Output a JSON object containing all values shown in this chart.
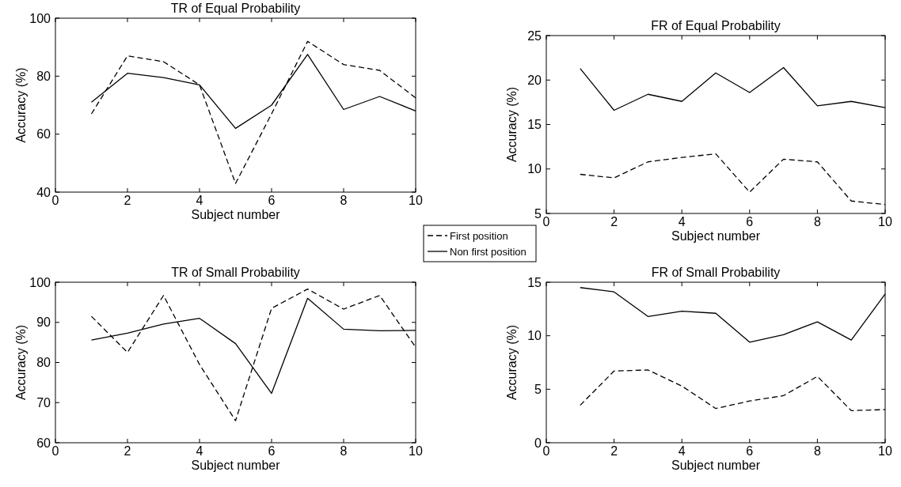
{
  "chart_data": [
    {
      "type": "line",
      "title": "TR of Equal Probability",
      "xlabel": "Subject number",
      "ylabel": "Accuracy (%)",
      "x": [
        1,
        2,
        3,
        4,
        5,
        6,
        7,
        8,
        9,
        10
      ],
      "xlim": [
        0,
        10
      ],
      "xticks": [
        0,
        2,
        4,
        6,
        8,
        10
      ],
      "ylim": [
        40,
        100
      ],
      "yticks": [
        40,
        60,
        80,
        100
      ],
      "legend": "bottom right",
      "series": [
        {
          "name": "First position",
          "color": "#000000",
          "line_style": "dashed",
          "values": [
            67,
            87,
            85,
            77,
            43,
            67,
            92,
            84,
            82,
            72.5
          ]
        },
        {
          "name": "Non first  position",
          "color": "#000000",
          "line_style": "solid",
          "values": [
            71,
            81,
            79.5,
            77,
            62,
            70,
            87.5,
            68.5,
            73,
            68
          ]
        }
      ]
    },
    {
      "type": "line",
      "title": "FR of Equal Probability",
      "xlabel": "Subject number",
      "ylabel": "Accuracy (%)",
      "x": [
        1,
        2,
        3,
        4,
        5,
        6,
        7,
        8,
        9,
        10
      ],
      "xlim": [
        0,
        10
      ],
      "xticks": [
        0,
        2,
        4,
        6,
        8,
        10
      ],
      "ylim": [
        5,
        25
      ],
      "yticks": [
        5,
        10,
        15,
        20,
        25
      ],
      "series": [
        {
          "color": "#000000",
          "line_style": "dashed",
          "values": [
            9.4,
            9.0,
            10.8,
            11.3,
            11.7,
            7.4,
            11.1,
            10.8,
            6.4,
            6.0
          ]
        },
        {
          "color": "#000000",
          "line_style": "solid",
          "values": [
            21.3,
            16.6,
            18.4,
            17.6,
            20.8,
            18.6,
            21.4,
            17.1,
            17.6,
            16.9
          ]
        }
      ]
    },
    {
      "type": "line",
      "title": "TR of Small Probability",
      "xlabel": "Subject number",
      "ylabel": "Accuracy (%)",
      "x": [
        1,
        2,
        3,
        4,
        5,
        6,
        7,
        8,
        9,
        10
      ],
      "xlim": [
        0,
        10
      ],
      "xticks": [
        0,
        2,
        4,
        6,
        8,
        10
      ],
      "ylim": [
        60,
        100
      ],
      "yticks": [
        60,
        70,
        80,
        90,
        100
      ],
      "series": [
        {
          "color": "#000000",
          "line_style": "dashed",
          "values": [
            91.5,
            82.5,
            96.7,
            79.5,
            65.5,
            93.5,
            98.3,
            93.3,
            96.7,
            83.8
          ]
        },
        {
          "color": "#000000",
          "line_style": "solid",
          "values": [
            85.6,
            87.3,
            89.6,
            91,
            84.7,
            72.3,
            96,
            88.3,
            87.9,
            88
          ]
        }
      ]
    },
    {
      "type": "line",
      "title": "FR of Small Probability",
      "xlabel": "Subject number",
      "ylabel": "Accuracy (%)",
      "x": [
        1,
        2,
        3,
        4,
        5,
        6,
        7,
        8,
        9,
        10
      ],
      "xlim": [
        0,
        10
      ],
      "xticks": [
        0,
        2,
        4,
        6,
        8,
        10
      ],
      "ylim": [
        0,
        15
      ],
      "yticks": [
        0,
        5,
        10,
        15
      ],
      "series": [
        {
          "color": "#000000",
          "line_style": "dashed",
          "values": [
            3.5,
            6.7,
            6.8,
            5.3,
            3.2,
            3.9,
            4.4,
            6.2,
            3.0,
            3.1
          ]
        },
        {
          "color": "#000000",
          "line_style": "solid",
          "values": [
            14.5,
            14.1,
            11.8,
            12.3,
            12.1,
            9.4,
            10.1,
            11.3,
            9.6,
            13.9
          ]
        }
      ]
    }
  ]
}
